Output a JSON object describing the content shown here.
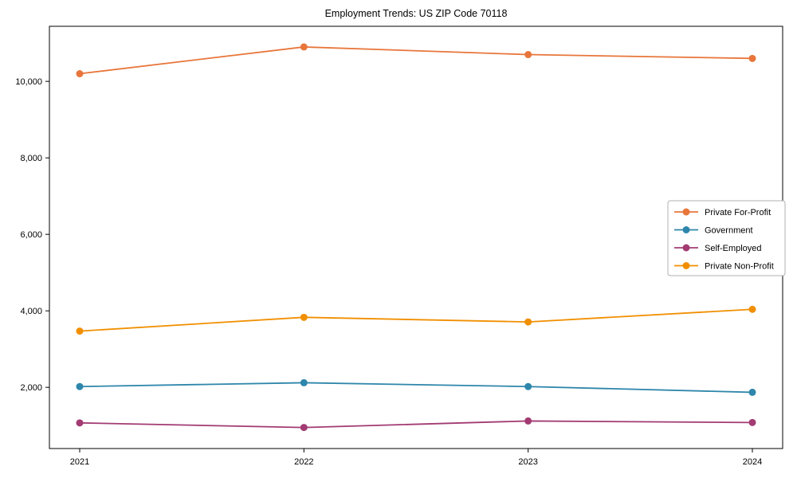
{
  "chart_data": {
    "type": "line",
    "title": "Employment Trends: US ZIP Code 70118",
    "xlabel": "",
    "ylabel": "",
    "x_tick_labels": [
      "2021",
      "2022",
      "2023",
      "2024"
    ],
    "y_ticks": [
      2000,
      4000,
      6000,
      8000,
      10000
    ],
    "y_tick_labels": [
      "2,000",
      "4,000",
      "6,000",
      "8,000",
      "10,000"
    ],
    "ylim": [
      400,
      11440
    ],
    "grid": false,
    "marker": "circle",
    "legend_position": "center-right",
    "axis_color": "#000000",
    "legend_border_color": "#b0b0b0",
    "series": [
      {
        "name": "Private For-Profit",
        "color": "#e8763b",
        "values": [
          10200,
          10900,
          10700,
          10600
        ]
      },
      {
        "name": "Government",
        "color": "#2e86ab",
        "values": [
          2020,
          2120,
          2020,
          1870
        ]
      },
      {
        "name": "Self-Employed",
        "color": "#a23b72",
        "values": [
          1070,
          950,
          1120,
          1080
        ]
      },
      {
        "name": "Private Non-Profit",
        "color": "#f18f01",
        "values": [
          3470,
          3830,
          3710,
          4040
        ]
      }
    ]
  }
}
